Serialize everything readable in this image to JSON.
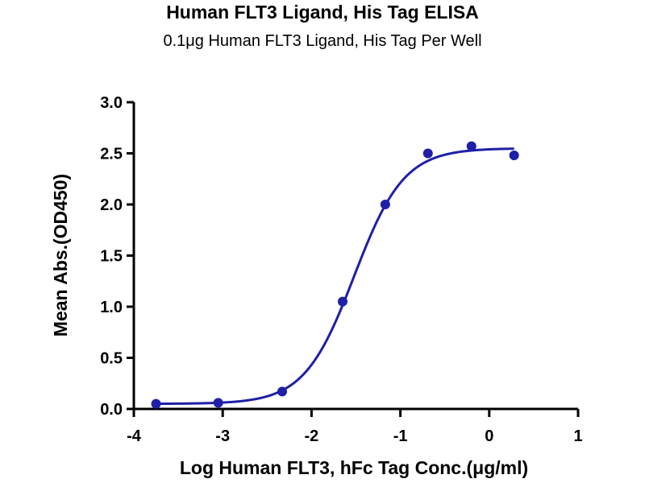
{
  "chart_data": {
    "type": "scatter",
    "title": "Human FLT3 Ligand, His Tag ELISA",
    "subtitle": "0.1μg Human FLT3 Ligand, His Tag Per Well",
    "xlabel": "Log Human FLT3, hFc Tag Conc.(μg/ml)",
    "ylabel": "Mean Abs.(OD450)",
    "xlim": [
      -4,
      1
    ],
    "ylim": [
      0,
      3.0
    ],
    "xticks": [
      "-4",
      "-3",
      "-2",
      "-1",
      "0",
      "1"
    ],
    "yticks": [
      "0.0",
      "0.5",
      "1.0",
      "1.5",
      "2.0",
      "2.5",
      "3.0"
    ],
    "series": [
      {
        "points": [
          {
            "x": -3.75,
            "y": 0.05
          },
          {
            "x": -3.05,
            "y": 0.06
          },
          {
            "x": -2.33,
            "y": 0.17
          },
          {
            "x": -1.65,
            "y": 1.05
          },
          {
            "x": -1.17,
            "y": 2.0
          },
          {
            "x": -0.69,
            "y": 2.5
          },
          {
            "x": -0.2,
            "y": 2.57
          },
          {
            "x": 0.28,
            "y": 2.48
          }
        ],
        "fit": {
          "model": "4PL",
          "bottom": 0.05,
          "top": 2.55,
          "logEC50": -1.52,
          "hill": 1.55
        },
        "color": "#1f1fa8"
      }
    ],
    "grid": false
  }
}
